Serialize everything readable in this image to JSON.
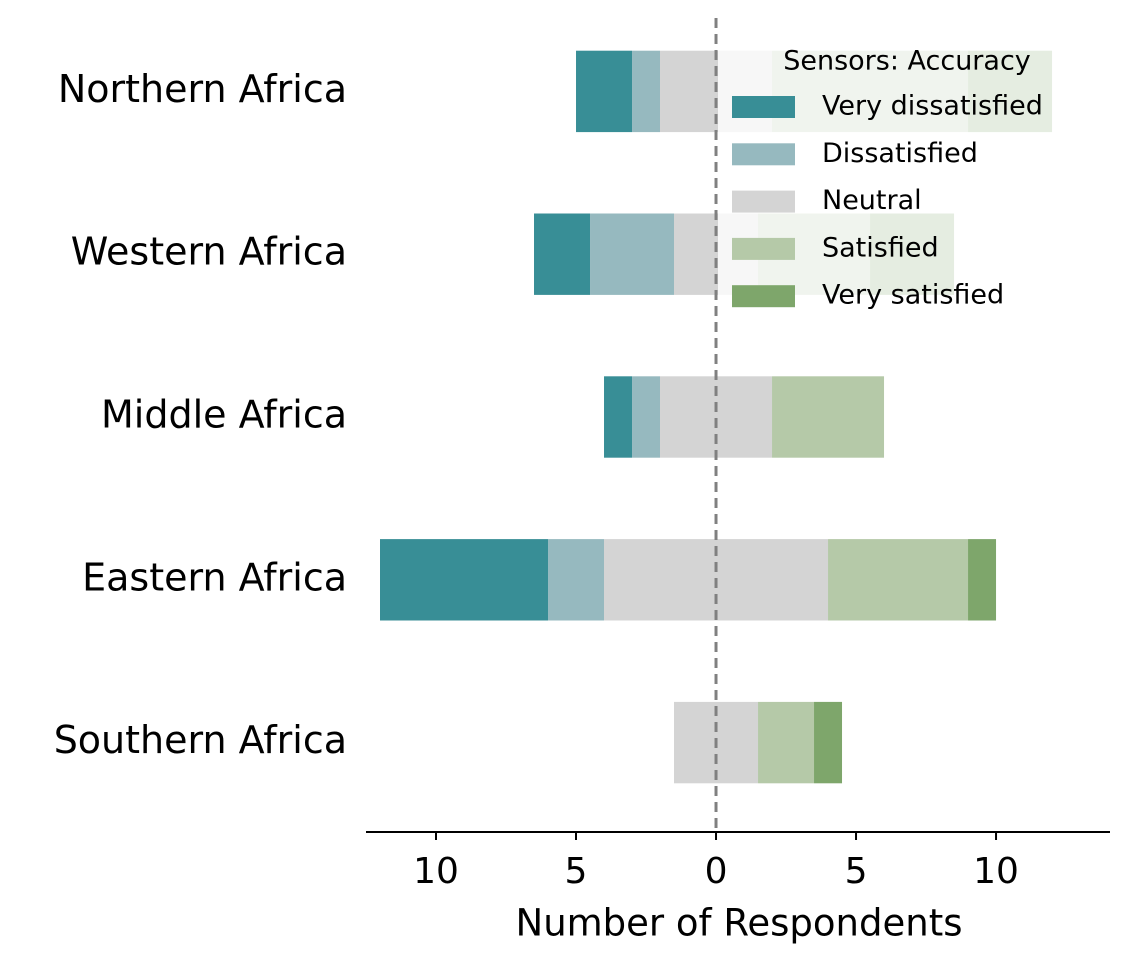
{
  "chart_data": {
    "type": "diverging_bar",
    "xlabel": "Number of Respondents",
    "categories": [
      "Northern Africa",
      "Western Africa",
      "Middle Africa",
      "Eastern Africa",
      "Southern Africa"
    ],
    "series": [
      {
        "name": "Very dissatisfied",
        "color": "#388e96",
        "values": [
          2,
          2,
          1,
          6,
          0
        ]
      },
      {
        "name": "Dissatisfied",
        "color": "#96b9bf",
        "values": [
          1,
          3,
          1,
          2,
          0
        ]
      },
      {
        "name": "Neutral",
        "color": "#d4d4d4",
        "values": [
          4,
          3,
          4,
          8,
          3
        ]
      },
      {
        "name": "Satisfied",
        "color": "#b5c9a8",
        "values": [
          7,
          4,
          4,
          5,
          2
        ]
      },
      {
        "name": "Very satisfied",
        "color": "#7ea66b",
        "values": [
          3,
          3,
          0,
          1,
          1
        ]
      }
    ],
    "legend_title": "Sensors: Accuracy",
    "legend": "upper right",
    "xlim": [
      -12.5,
      14.07
    ],
    "xticks": [
      {
        "value": -10,
        "label": "10"
      },
      {
        "value": -5,
        "label": "5"
      },
      0,
      5,
      10
    ]
  }
}
